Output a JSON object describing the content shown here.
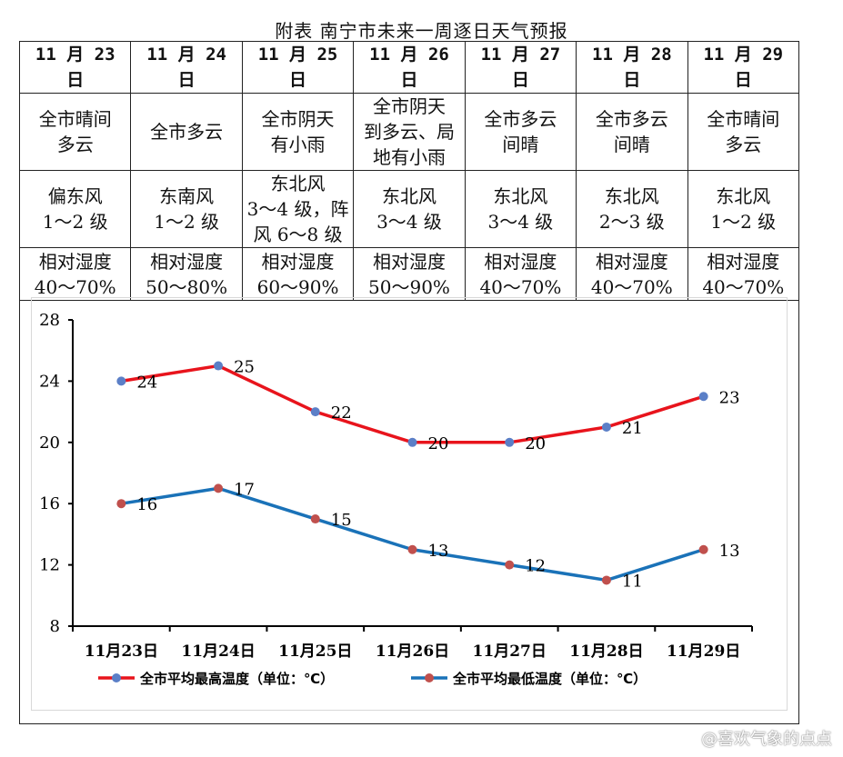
{
  "title": "附表  南宁市未来一周逐日天气预报",
  "table": {
    "dates": [
      "11 月 23 日",
      "11 月 24 日",
      "11 月 25 日",
      "11 月 26 日",
      "11 月 27 日",
      "11 月 28 日",
      "11 月 29 日"
    ],
    "weather": [
      [
        "全市晴间",
        "多云"
      ],
      [
        "全市多云"
      ],
      [
        "全市阴天",
        "有小雨"
      ],
      [
        "全市阴天",
        "到多云、局",
        "地有小雨"
      ],
      [
        "全市多云",
        "间晴"
      ],
      [
        "全市多云",
        "间晴"
      ],
      [
        "全市晴间",
        "多云"
      ]
    ],
    "wind": [
      [
        "偏东风",
        "1～2 级"
      ],
      [
        "东南风",
        "1～2 级"
      ],
      [
        "东北风",
        "3～4 级，阵",
        "风 6～8 级"
      ],
      [
        "东北风",
        "3～4 级"
      ],
      [
        "东北风",
        "3～4 级"
      ],
      [
        "东北风",
        "2～3 级"
      ],
      [
        "东北风",
        "1～2 级"
      ]
    ],
    "humidity": [
      [
        "相对湿度",
        "40～70%"
      ],
      [
        "相对湿度",
        "50～80%"
      ],
      [
        "相对湿度",
        "60～90%"
      ],
      [
        "相对湿度",
        "50～90%"
      ],
      [
        "相对湿度",
        "40～70%"
      ],
      [
        "相对湿度",
        "40～70%"
      ],
      [
        "相对湿度",
        "40～70%"
      ]
    ]
  },
  "chart_data": {
    "type": "line",
    "categories": [
      "11月23日",
      "11月24日",
      "11月25日",
      "11月26日",
      "11月27日",
      "11月28日",
      "11月29日"
    ],
    "series": [
      {
        "name": "全市平均最高温度（单位：℃）",
        "values": [
          24,
          25,
          22,
          20,
          20,
          21,
          23
        ],
        "line_color": "#e8141c",
        "marker_color": "#5b7fc7"
      },
      {
        "name": "全市平均最低温度（单位：℃）",
        "values": [
          16,
          17,
          15,
          13,
          12,
          11,
          13
        ],
        "line_color": "#1a72b8",
        "marker_color": "#c0504d"
      }
    ],
    "ylim": [
      8,
      28
    ],
    "yticks": [
      8,
      12,
      16,
      20,
      24,
      28
    ],
    "legend": "bottom",
    "grid": false
  },
  "watermark": "@喜欢气象的点点"
}
